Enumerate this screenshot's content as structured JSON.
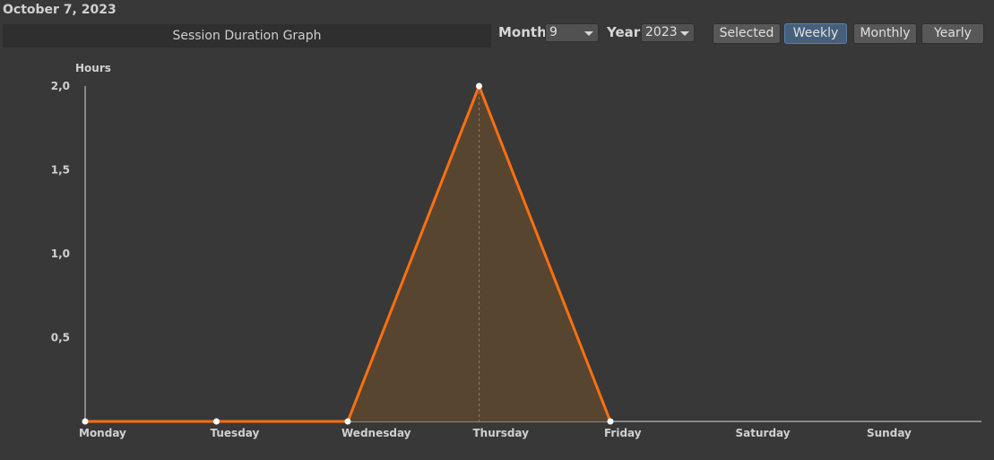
{
  "header": {
    "date": "October 7, 2023",
    "title": "Session Duration Graph",
    "month_label": "Month",
    "month_value": "9",
    "year_label": "Year",
    "year_value": "2023",
    "buttons": {
      "selected": "Selected",
      "weekly": "Weekly",
      "monthly": "Monthly",
      "yearly": "Yearly"
    }
  },
  "colors": {
    "line": "#ff7010",
    "fill": "#574530",
    "background": "#383838"
  },
  "chart_data": {
    "type": "area",
    "ylabel": "Hours",
    "categories": [
      "Monday",
      "Tuesday",
      "Wednesday",
      "Thursday",
      "Friday",
      "Saturday",
      "Sunday"
    ],
    "values": [
      0,
      0,
      0,
      2.0,
      0,
      null,
      null
    ],
    "ylim": [
      0,
      2.0
    ],
    "yticks": [
      "0,5",
      "1,0",
      "1,5",
      "2,0"
    ],
    "ytick_values": [
      0.5,
      1.0,
      1.5,
      2.0
    ],
    "grid": false
  }
}
